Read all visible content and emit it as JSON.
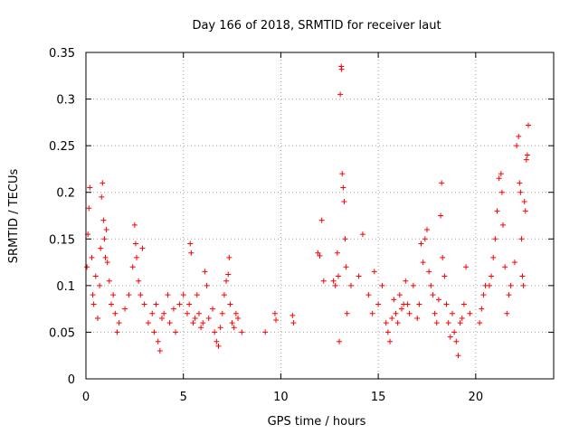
{
  "chart_data": {
    "type": "scatter",
    "title": "Day 166 of 2018, SRMTID for receiver laut",
    "xlabel": "GPS time / hours",
    "ylabel": "SRMTID / TECUs",
    "xlim": [
      0,
      24
    ],
    "ylim": [
      0,
      0.35
    ],
    "x_ticks": [
      0,
      5,
      10,
      15,
      20
    ],
    "x_tick_labels": [
      "0",
      "5",
      "10",
      "15",
      "20"
    ],
    "y_ticks": [
      0,
      0.05,
      0.1,
      0.15,
      0.2,
      0.25,
      0.3,
      0.35
    ],
    "y_tick_labels": [
      "0",
      "0.05",
      "0.1",
      "0.15",
      "0.2",
      "0.25",
      "0.3",
      "0.35"
    ],
    "grid": true,
    "marker": "+",
    "series": [
      {
        "name": "SRMTID",
        "color": "#ff0000",
        "points": [
          [
            0.05,
            0.12
          ],
          [
            0.1,
            0.155
          ],
          [
            0.15,
            0.183
          ],
          [
            0.2,
            0.205
          ],
          [
            0.3,
            0.13
          ],
          [
            0.35,
            0.09
          ],
          [
            0.4,
            0.08
          ],
          [
            0.5,
            0.11
          ],
          [
            0.6,
            0.065
          ],
          [
            0.7,
            0.1
          ],
          [
            0.75,
            0.14
          ],
          [
            0.8,
            0.195
          ],
          [
            0.85,
            0.21
          ],
          [
            0.9,
            0.17
          ],
          [
            0.95,
            0.15
          ],
          [
            1.0,
            0.13
          ],
          [
            1.05,
            0.16
          ],
          [
            1.1,
            0.125
          ],
          [
            1.2,
            0.105
          ],
          [
            1.3,
            0.08
          ],
          [
            1.4,
            0.09
          ],
          [
            1.5,
            0.07
          ],
          [
            1.6,
            0.05
          ],
          [
            1.7,
            0.06
          ],
          [
            2.0,
            0.075
          ],
          [
            2.2,
            0.09
          ],
          [
            2.4,
            0.12
          ],
          [
            2.5,
            0.165
          ],
          [
            2.55,
            0.145
          ],
          [
            2.6,
            0.13
          ],
          [
            2.7,
            0.105
          ],
          [
            2.8,
            0.09
          ],
          [
            2.9,
            0.14
          ],
          [
            3.0,
            0.08
          ],
          [
            3.2,
            0.06
          ],
          [
            3.4,
            0.07
          ],
          [
            3.5,
            0.05
          ],
          [
            3.6,
            0.08
          ],
          [
            3.7,
            0.04
          ],
          [
            3.8,
            0.03
          ],
          [
            3.9,
            0.065
          ],
          [
            4.0,
            0.07
          ],
          [
            4.2,
            0.09
          ],
          [
            4.3,
            0.06
          ],
          [
            4.5,
            0.075
          ],
          [
            4.6,
            0.05
          ],
          [
            4.8,
            0.08
          ],
          [
            5.0,
            0.09
          ],
          [
            5.2,
            0.07
          ],
          [
            5.3,
            0.08
          ],
          [
            5.35,
            0.145
          ],
          [
            5.4,
            0.135
          ],
          [
            5.5,
            0.06
          ],
          [
            5.6,
            0.065
          ],
          [
            5.7,
            0.09
          ],
          [
            5.8,
            0.07
          ],
          [
            5.9,
            0.055
          ],
          [
            6.0,
            0.06
          ],
          [
            6.1,
            0.115
          ],
          [
            6.2,
            0.1
          ],
          [
            6.3,
            0.065
          ],
          [
            6.5,
            0.075
          ],
          [
            6.6,
            0.05
          ],
          [
            6.7,
            0.04
          ],
          [
            6.8,
            0.035
          ],
          [
            6.9,
            0.055
          ],
          [
            7.0,
            0.07
          ],
          [
            7.1,
            0.09
          ],
          [
            7.2,
            0.105
          ],
          [
            7.3,
            0.112
          ],
          [
            7.35,
            0.13
          ],
          [
            7.4,
            0.08
          ],
          [
            7.5,
            0.06
          ],
          [
            7.6,
            0.055
          ],
          [
            7.7,
            0.07
          ],
          [
            7.8,
            0.065
          ],
          [
            8.0,
            0.05
          ],
          [
            9.2,
            0.05
          ],
          [
            9.7,
            0.07
          ],
          [
            9.75,
            0.063
          ],
          [
            10.6,
            0.068
          ],
          [
            10.65,
            0.06
          ],
          [
            11.9,
            0.135
          ],
          [
            12.0,
            0.132
          ],
          [
            12.1,
            0.17
          ],
          [
            12.2,
            0.105
          ],
          [
            12.7,
            0.105
          ],
          [
            12.8,
            0.1
          ],
          [
            12.9,
            0.135
          ],
          [
            12.95,
            0.11
          ],
          [
            13.0,
            0.04
          ],
          [
            13.05,
            0.305
          ],
          [
            13.1,
            0.335
          ],
          [
            13.12,
            0.332
          ],
          [
            13.15,
            0.22
          ],
          [
            13.2,
            0.205
          ],
          [
            13.25,
            0.19
          ],
          [
            13.3,
            0.15
          ],
          [
            13.35,
            0.12
          ],
          [
            13.4,
            0.07
          ],
          [
            13.6,
            0.1
          ],
          [
            14.0,
            0.11
          ],
          [
            14.2,
            0.155
          ],
          [
            14.5,
            0.09
          ],
          [
            14.7,
            0.07
          ],
          [
            14.8,
            0.115
          ],
          [
            15.0,
            0.08
          ],
          [
            15.2,
            0.1
          ],
          [
            15.4,
            0.06
          ],
          [
            15.5,
            0.05
          ],
          [
            15.6,
            0.04
          ],
          [
            15.7,
            0.065
          ],
          [
            15.8,
            0.085
          ],
          [
            15.9,
            0.07
          ],
          [
            16.0,
            0.06
          ],
          [
            16.1,
            0.09
          ],
          [
            16.2,
            0.075
          ],
          [
            16.3,
            0.08
          ],
          [
            16.4,
            0.105
          ],
          [
            16.5,
            0.08
          ],
          [
            16.6,
            0.07
          ],
          [
            16.8,
            0.1
          ],
          [
            17.0,
            0.065
          ],
          [
            17.1,
            0.08
          ],
          [
            17.2,
            0.145
          ],
          [
            17.3,
            0.125
          ],
          [
            17.4,
            0.15
          ],
          [
            17.5,
            0.16
          ],
          [
            17.6,
            0.115
          ],
          [
            17.7,
            0.1
          ],
          [
            17.8,
            0.09
          ],
          [
            17.9,
            0.07
          ],
          [
            18.0,
            0.06
          ],
          [
            18.1,
            0.085
          ],
          [
            18.2,
            0.175
          ],
          [
            18.25,
            0.21
          ],
          [
            18.3,
            0.13
          ],
          [
            18.4,
            0.11
          ],
          [
            18.5,
            0.08
          ],
          [
            18.6,
            0.06
          ],
          [
            18.7,
            0.045
          ],
          [
            18.8,
            0.07
          ],
          [
            18.9,
            0.05
          ],
          [
            19.0,
            0.04
          ],
          [
            19.1,
            0.025
          ],
          [
            19.2,
            0.06
          ],
          [
            19.3,
            0.065
          ],
          [
            19.4,
            0.08
          ],
          [
            19.5,
            0.12
          ],
          [
            19.7,
            0.07
          ],
          [
            20.2,
            0.06
          ],
          [
            20.3,
            0.075
          ],
          [
            20.4,
            0.09
          ],
          [
            20.5,
            0.1
          ],
          [
            20.7,
            0.1
          ],
          [
            20.8,
            0.11
          ],
          [
            20.9,
            0.13
          ],
          [
            21.0,
            0.15
          ],
          [
            21.1,
            0.18
          ],
          [
            21.2,
            0.215
          ],
          [
            21.3,
            0.22
          ],
          [
            21.35,
            0.2
          ],
          [
            21.4,
            0.165
          ],
          [
            21.5,
            0.12
          ],
          [
            21.6,
            0.07
          ],
          [
            21.7,
            0.09
          ],
          [
            21.8,
            0.1
          ],
          [
            22.0,
            0.125
          ],
          [
            22.1,
            0.25
          ],
          [
            22.2,
            0.26
          ],
          [
            22.25,
            0.21
          ],
          [
            22.3,
            0.2
          ],
          [
            22.35,
            0.15
          ],
          [
            22.4,
            0.11
          ],
          [
            22.45,
            0.1
          ],
          [
            22.5,
            0.19
          ],
          [
            22.55,
            0.18
          ],
          [
            22.6,
            0.235
          ],
          [
            22.65,
            0.24
          ],
          [
            22.7,
            0.272
          ]
        ]
      }
    ]
  }
}
